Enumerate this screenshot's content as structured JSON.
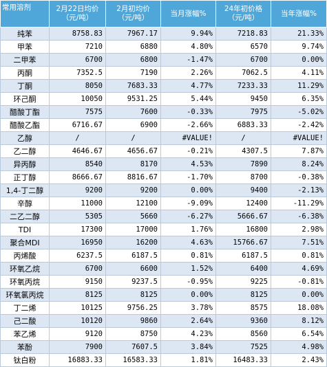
{
  "header": {
    "col0": "常用溶剂",
    "col1_line1": "2月22日均价",
    "col1_line2": "（元/吨）",
    "col2_line1": "2月初均价",
    "col2_line2": "（元/吨）",
    "col3": "当月涨幅%",
    "col4_line1": "24年初价格",
    "col4_line2": "（元/吨）",
    "col5": "当年涨幅%"
  },
  "rows": [
    {
      "name": "纯苯",
      "price_0222": "8758.83",
      "price_feb": "7967.17",
      "month_change": "9.94%",
      "month_sign": "pos",
      "price_2024": "7218.83",
      "year_change": "21.33%",
      "year_sign": "pos"
    },
    {
      "name": "甲苯",
      "price_0222": "7210",
      "price_feb": "6880",
      "month_change": "4.80%",
      "month_sign": "pos",
      "price_2024": "6570",
      "year_change": "9.74%",
      "year_sign": "pos"
    },
    {
      "name": "二甲苯",
      "price_0222": "6700",
      "price_feb": "6800",
      "month_change": "-1.47%",
      "month_sign": "neg",
      "price_2024": "6700",
      "year_change": "0.00%",
      "year_sign": "zero"
    },
    {
      "name": "丙酮",
      "price_0222": "7352.5",
      "price_feb": "7190",
      "month_change": "2.26%",
      "month_sign": "pos",
      "price_2024": "7062.5",
      "year_change": "4.11%",
      "year_sign": "pos"
    },
    {
      "name": "丁酮",
      "price_0222": "8050",
      "price_feb": "7683.33",
      "month_change": "4.77%",
      "month_sign": "pos",
      "price_2024": "7233.33",
      "year_change": "11.29%",
      "year_sign": "pos"
    },
    {
      "name": "环己酮",
      "price_0222": "10050",
      "price_feb": "9531.25",
      "month_change": "5.44%",
      "month_sign": "pos",
      "price_2024": "9450",
      "year_change": "6.35%",
      "year_sign": "pos"
    },
    {
      "name": "醋酸丁酯",
      "price_0222": "7575",
      "price_feb": "7600",
      "month_change": "-0.33%",
      "month_sign": "neg",
      "price_2024": "7975",
      "year_change": "-5.02%",
      "year_sign": "neg"
    },
    {
      "name": "醋酸乙酯",
      "price_0222": "6716.67",
      "price_feb": "6900",
      "month_change": "-2.66%",
      "month_sign": "neg",
      "price_2024": "6883.33",
      "year_change": "-2.42%",
      "year_sign": "neg"
    },
    {
      "name": "乙醇",
      "price_0222": "/",
      "price_feb": "/",
      "month_change": "#VALUE!",
      "month_sign": "zero",
      "price_2024": "/",
      "year_change": "#VALUE!",
      "year_sign": "zero",
      "slashes": true
    },
    {
      "name": "乙二醇",
      "price_0222": "4646.67",
      "price_feb": "4656.67",
      "month_change": "-0.21%",
      "month_sign": "neg",
      "price_2024": "4307.5",
      "year_change": "7.87%",
      "year_sign": "pos"
    },
    {
      "name": "异丙醇",
      "price_0222": "8540",
      "price_feb": "8170",
      "month_change": "4.53%",
      "month_sign": "pos",
      "price_2024": "7890",
      "year_change": "8.24%",
      "year_sign": "pos"
    },
    {
      "name": "正丁醇",
      "price_0222": "8666.67",
      "price_feb": "8816.67",
      "month_change": "-1.70%",
      "month_sign": "neg",
      "price_2024": "8700",
      "year_change": "-0.38%",
      "year_sign": "neg"
    },
    {
      "name": "1,4-丁二醇",
      "price_0222": "9200",
      "price_feb": "9200",
      "month_change": "0.00%",
      "month_sign": "zero",
      "price_2024": "9400",
      "year_change": "-2.13%",
      "year_sign": "neg"
    },
    {
      "name": "辛醇",
      "price_0222": "11000",
      "price_feb": "12100",
      "month_change": "-9.09%",
      "month_sign": "neg",
      "price_2024": "12400",
      "year_change": "-11.29%",
      "year_sign": "neg"
    },
    {
      "name": "二乙二醇",
      "price_0222": "5305",
      "price_feb": "5660",
      "month_change": "-6.27%",
      "month_sign": "neg",
      "price_2024": "5666.67",
      "year_change": "-6.38%",
      "year_sign": "neg"
    },
    {
      "name": "TDI",
      "price_0222": "17300",
      "price_feb": "17000",
      "month_change": "1.76%",
      "month_sign": "pos",
      "price_2024": "16800",
      "year_change": "2.98%",
      "year_sign": "pos"
    },
    {
      "name": "聚合MDI",
      "price_0222": "16950",
      "price_feb": "16200",
      "month_change": "4.63%",
      "month_sign": "pos",
      "price_2024": "15766.67",
      "year_change": "7.51%",
      "year_sign": "pos"
    },
    {
      "name": "丙烯酸",
      "price_0222": "6237.5",
      "price_feb": "6187.5",
      "month_change": "0.81%",
      "month_sign": "pos",
      "price_2024": "6187.5",
      "year_change": "0.81%",
      "year_sign": "pos"
    },
    {
      "name": "环氧乙烷",
      "price_0222": "6700",
      "price_feb": "6600",
      "month_change": "1.52%",
      "month_sign": "pos",
      "price_2024": "6400",
      "year_change": "4.69%",
      "year_sign": "pos"
    },
    {
      "name": "环氧丙烷",
      "price_0222": "9150",
      "price_feb": "9237.5",
      "month_change": "-0.95%",
      "month_sign": "neg",
      "price_2024": "9225",
      "year_change": "-0.81%",
      "year_sign": "neg"
    },
    {
      "name": "环氧氯丙烷",
      "price_0222": "8125",
      "price_feb": "8125",
      "month_change": "0.00%",
      "month_sign": "zero",
      "price_2024": "8125",
      "year_change": "0.00%",
      "year_sign": "zero"
    },
    {
      "name": "丁二烯",
      "price_0222": "10125",
      "price_feb": "9756.25",
      "month_change": "3.78%",
      "month_sign": "pos",
      "price_2024": "8575",
      "year_change": "18.08%",
      "year_sign": "pos"
    },
    {
      "name": "己二酸",
      "price_0222": "10120",
      "price_feb": "9860",
      "month_change": "2.64%",
      "month_sign": "pos",
      "price_2024": "9360",
      "year_change": "8.12%",
      "year_sign": "pos"
    },
    {
      "name": "苯乙烯",
      "price_0222": "9120",
      "price_feb": "8750",
      "month_change": "4.23%",
      "month_sign": "pos",
      "price_2024": "8560",
      "year_change": "6.54%",
      "year_sign": "pos"
    },
    {
      "name": "苯酚",
      "price_0222": "7900",
      "price_feb": "7607.5",
      "month_change": "3.84%",
      "month_sign": "pos",
      "price_2024": "7525",
      "year_change": "4.98%",
      "year_sign": "pos"
    },
    {
      "name": "钛白粉",
      "price_0222": "16883.33",
      "price_feb": "16583.33",
      "month_change": "1.81%",
      "month_sign": "pos",
      "price_2024": "16483.33",
      "year_change": "2.43%",
      "year_sign": "pos"
    }
  ],
  "colors": {
    "header_bg": "#4fa7d9",
    "stripe_bg": "#dde7f4",
    "positive": "#e8111a",
    "negative": "#1f9e2b"
  }
}
